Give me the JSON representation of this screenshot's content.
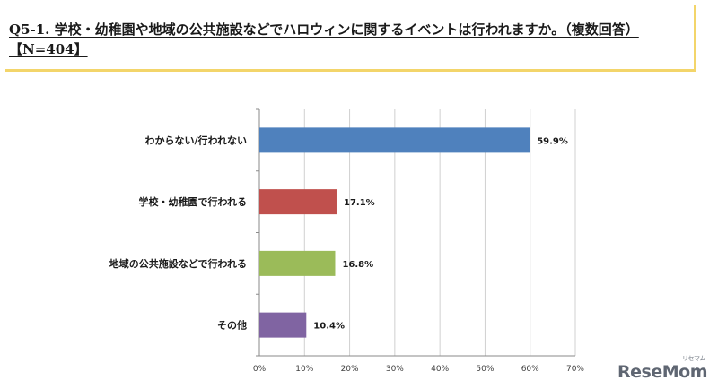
{
  "question": {
    "text": "Q5-1. 学校・幼稚園や地域の公共施設などでハロウィンに関するイベントは行われますか。（複数回答）【N=404】"
  },
  "chart_data": {
    "type": "bar",
    "orientation": "horizontal",
    "categories": [
      "わからない/行われない",
      "学校・幼稚園で行われる",
      "地域の公共施設などで行われる",
      "その他"
    ],
    "values": [
      59.9,
      17.1,
      16.8,
      10.4
    ],
    "value_labels": [
      "59.9%",
      "17.1%",
      "16.8%",
      "10.4%"
    ],
    "colors": [
      "#4f81bd",
      "#c0504d",
      "#9bbb59",
      "#8064a2"
    ],
    "xlim": [
      0,
      70
    ],
    "x_ticks": [
      "0%",
      "10%",
      "20%",
      "30%",
      "40%",
      "50%",
      "60%",
      "70%"
    ],
    "grid": "vertical",
    "title": "",
    "xlabel": "",
    "ylabel": ""
  },
  "watermark": {
    "brand": "ReseMom",
    "sub": "リセマム"
  }
}
